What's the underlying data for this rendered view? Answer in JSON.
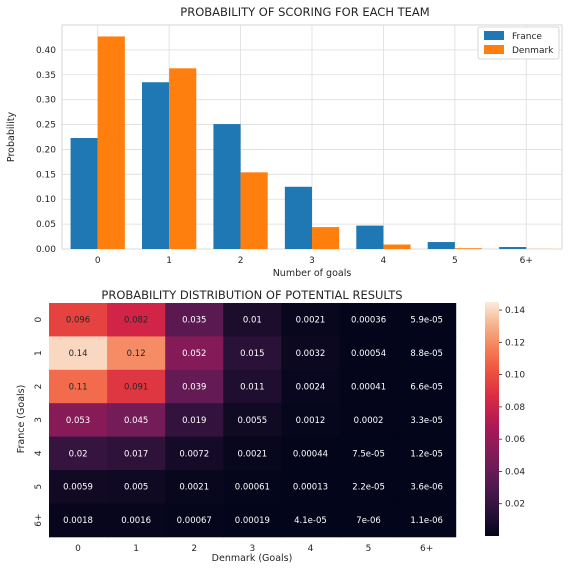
{
  "chart_data": [
    {
      "type": "bar",
      "title": "PROBABILITY OF SCORING FOR EACH TEAM",
      "xlabel": "Number of goals",
      "ylabel": "Probability",
      "categories": [
        "0",
        "1",
        "2",
        "3",
        "4",
        "5",
        "6+"
      ],
      "ylim": [
        0,
        0.45
      ],
      "yticks": [
        "0.00",
        "0.05",
        "0.10",
        "0.15",
        "0.20",
        "0.25",
        "0.30",
        "0.35",
        "0.40"
      ],
      "grid": true,
      "legend_position": "top-right",
      "series": [
        {
          "name": "France",
          "color": "#1f77b4",
          "values": [
            0.223,
            0.335,
            0.251,
            0.125,
            0.047,
            0.014,
            0.004
          ]
        },
        {
          "name": "Denmark",
          "color": "#ff7f0e",
          "values": [
            0.427,
            0.363,
            0.154,
            0.044,
            0.009,
            0.0016,
            0.0002
          ]
        }
      ]
    },
    {
      "type": "heatmap",
      "title": "PROBABILITY DISTRIBUTION OF POTENTIAL RESULTS",
      "xlabel": "Denmark (Goals)",
      "ylabel": "France (Goals)",
      "x_categories": [
        "0",
        "1",
        "2",
        "3",
        "4",
        "5",
        "6+"
      ],
      "y_categories": [
        "0",
        "1",
        "2",
        "3",
        "4",
        "5",
        "6+"
      ],
      "values": [
        [
          0.096,
          0.082,
          0.035,
          0.01,
          0.0021,
          0.00036,
          5.9e-05
        ],
        [
          0.14,
          0.12,
          0.052,
          0.015,
          0.0032,
          0.00054,
          8.8e-05
        ],
        [
          0.11,
          0.091,
          0.039,
          0.011,
          0.0024,
          0.00041,
          6.6e-05
        ],
        [
          0.053,
          0.045,
          0.019,
          0.0055,
          0.0012,
          0.0002,
          3.3e-05
        ],
        [
          0.02,
          0.017,
          0.0072,
          0.0021,
          0.00044,
          7.5e-05,
          1.2e-05
        ],
        [
          0.0059,
          0.005,
          0.0021,
          0.00061,
          0.00013,
          2.2e-05,
          3.6e-06
        ],
        [
          0.0018,
          0.0016,
          0.00067,
          0.00019,
          4.1e-05,
          7e-06,
          1.1e-06
        ]
      ],
      "labels": [
        [
          "0.096",
          "0.082",
          "0.035",
          "0.01",
          "0.0021",
          "0.00036",
          "5.9e-05"
        ],
        [
          "0.14",
          "0.12",
          "0.052",
          "0.015",
          "0.0032",
          "0.00054",
          "8.8e-05"
        ],
        [
          "0.11",
          "0.091",
          "0.039",
          "0.011",
          "0.0024",
          "0.00041",
          "6.6e-05"
        ],
        [
          "0.053",
          "0.045",
          "0.019",
          "0.0055",
          "0.0012",
          "0.0002",
          "3.3e-05"
        ],
        [
          "0.02",
          "0.017",
          "0.0072",
          "0.0021",
          "0.00044",
          "7.5e-05",
          "1.2e-05"
        ],
        [
          "0.0059",
          "0.005",
          "0.0021",
          "0.00061",
          "0.00013",
          "2.2e-05",
          "3.6e-06"
        ],
        [
          "0.0018",
          "0.0016",
          "0.00067",
          "0.00019",
          "4.1e-05",
          "7e-06",
          "1.1e-06"
        ]
      ],
      "colorbar_range": [
        0,
        0.145
      ],
      "colorbar_ticks": [
        "0.02",
        "0.04",
        "0.06",
        "0.08",
        "0.10",
        "0.12",
        "0.14"
      ],
      "colormap": "rocket"
    }
  ]
}
